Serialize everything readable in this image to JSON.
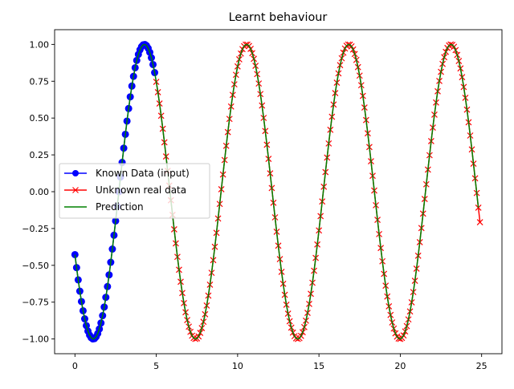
{
  "chart_data": {
    "type": "line",
    "title": "Learnt behaviour",
    "xlabel": "",
    "ylabel": "",
    "xlim": [
      -1.25,
      26.25
    ],
    "ylim": [
      -1.1,
      1.1
    ],
    "xticks": [
      0,
      5,
      10,
      15,
      20,
      25
    ],
    "xtick_labels": [
      "0",
      "5",
      "10",
      "15",
      "20",
      "25"
    ],
    "yticks": [
      -1.0,
      -0.75,
      -0.5,
      -0.25,
      0.0,
      0.25,
      0.5,
      0.75,
      1.0
    ],
    "ytick_labels": [
      "−1.00",
      "−0.75",
      "−0.50",
      "−0.25",
      "0.00",
      "0.25",
      "0.50",
      "0.75",
      "1.00"
    ],
    "grid": false,
    "legend_position": "center-left",
    "function": "sin(x - 2.7)",
    "series": [
      {
        "name": "Known Data (input)",
        "color": "#0000ff",
        "marker": "circle",
        "line": true,
        "x_range": [
          0,
          4.9
        ],
        "step": 0.1
      },
      {
        "name": "Unknown real data",
        "color": "#ff0000",
        "marker": "x",
        "line": true,
        "x_range": [
          5.0,
          24.9
        ],
        "step": 0.1
      },
      {
        "name": "Prediction",
        "color": "#008000",
        "marker": "none",
        "line": true,
        "x_range": [
          0,
          24.8
        ],
        "step": 0.1
      }
    ]
  }
}
